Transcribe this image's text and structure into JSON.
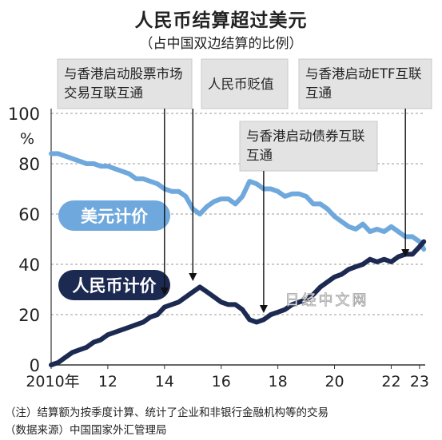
{
  "chart_data": {
    "type": "line",
    "title": "人民币结算超过美元",
    "subtitle": "（占中国双边结算的比例）",
    "y_unit": "%",
    "ylim": [
      0,
      100
    ],
    "y_ticks": [
      "0",
      "20",
      "40",
      "60",
      "80",
      "100"
    ],
    "xlim": [
      2010,
      2023.2
    ],
    "x_ticks": [
      {
        "x": 2010,
        "label": "2010年"
      },
      {
        "x": 2012,
        "label": "12"
      },
      {
        "x": 2014,
        "label": "14"
      },
      {
        "x": 2016,
        "label": "16"
      },
      {
        "x": 2018,
        "label": "18"
      },
      {
        "x": 2020,
        "label": "20"
      },
      {
        "x": 2022,
        "label": "22"
      },
      {
        "x": 2023,
        "label": "23"
      }
    ],
    "grid": "horizontal",
    "series": [
      {
        "name": "美元计价",
        "color": "#6fa8dc",
        "x": [
          2010.0,
          2010.25,
          2010.5,
          2010.75,
          2011.0,
          2011.25,
          2011.5,
          2011.75,
          2012.0,
          2012.25,
          2012.5,
          2012.75,
          2013.0,
          2013.25,
          2013.5,
          2013.75,
          2014.0,
          2014.25,
          2014.5,
          2014.75,
          2015.0,
          2015.25,
          2015.5,
          2015.75,
          2016.0,
          2016.25,
          2016.5,
          2016.75,
          2017.0,
          2017.25,
          2017.5,
          2017.75,
          2018.0,
          2018.25,
          2018.5,
          2018.75,
          2019.0,
          2019.25,
          2019.5,
          2019.75,
          2020.0,
          2020.25,
          2020.5,
          2020.75,
          2021.0,
          2021.25,
          2021.5,
          2021.75,
          2022.0,
          2022.25,
          2022.5,
          2022.75,
          2023.0,
          2023.15
        ],
        "values": [
          84,
          84,
          83,
          82,
          81,
          80,
          80,
          79,
          79,
          78,
          77,
          76,
          74,
          74,
          73,
          72,
          70,
          69,
          69,
          67,
          62,
          60,
          63,
          65,
          66,
          66,
          64,
          67,
          73,
          72,
          70,
          70,
          69,
          67,
          68,
          68,
          67,
          64,
          64,
          62,
          59,
          57,
          55,
          54,
          56,
          53,
          54,
          53,
          55,
          53,
          51,
          51,
          49,
          46
        ]
      },
      {
        "name": "人民币计价",
        "color": "#1c2a52",
        "x": [
          2010.0,
          2010.25,
          2010.5,
          2010.75,
          2011.0,
          2011.25,
          2011.5,
          2011.75,
          2012.0,
          2012.25,
          2012.5,
          2012.75,
          2013.0,
          2013.25,
          2013.5,
          2013.75,
          2014.0,
          2014.25,
          2014.5,
          2014.75,
          2015.0,
          2015.25,
          2015.5,
          2015.75,
          2016.0,
          2016.25,
          2016.5,
          2016.75,
          2017.0,
          2017.25,
          2017.5,
          2017.75,
          2018.0,
          2018.25,
          2018.5,
          2018.75,
          2019.0,
          2019.25,
          2019.5,
          2019.75,
          2020.0,
          2020.25,
          2020.5,
          2020.75,
          2021.0,
          2021.25,
          2021.5,
          2021.75,
          2022.0,
          2022.25,
          2022.5,
          2022.75,
          2023.0,
          2023.15
        ],
        "values": [
          0,
          1,
          3,
          5,
          6,
          7,
          9,
          10,
          12,
          13,
          14,
          15,
          16,
          17,
          19,
          20,
          23,
          24,
          25,
          27,
          29,
          31,
          29,
          27,
          25,
          24,
          24,
          22,
          18,
          17,
          18,
          20,
          21,
          22,
          24,
          25,
          26,
          28,
          31,
          33,
          35,
          36,
          38,
          39,
          40,
          42,
          41,
          42,
          41,
          43,
          44,
          44,
          47,
          49
        ]
      }
    ],
    "annotations": [
      {
        "text": "与香港启动股票市场\n交易互联互通",
        "x": 2014.0
      },
      {
        "text": "人民币贬值",
        "x": 2015.0
      },
      {
        "text": "与香港启动债券互联\n互通",
        "x": 2017.5
      },
      {
        "text": "与香港启动ETF互联\n互通",
        "x": 2022.5
      }
    ]
  },
  "watermark": "日经中文网",
  "notes": {
    "line1": "（注）结算额为按季度计算、统计了企业和非银行金融机构等的交易",
    "line2": "（数据来源）中国国家外汇管理局"
  }
}
